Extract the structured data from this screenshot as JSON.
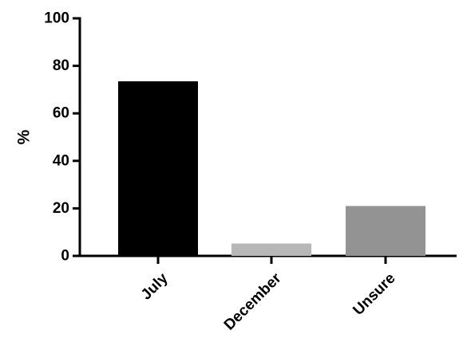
{
  "chart_data": {
    "type": "bar",
    "title": "",
    "xlabel": "",
    "ylabel": "%",
    "categories": [
      "July",
      "December",
      "Unsure"
    ],
    "values": [
      73.5,
      5.2,
      21.0
    ],
    "colors": [
      "#000000",
      "#b7b7b7",
      "#939393"
    ],
    "ylim": [
      0,
      100
    ],
    "yticks": [
      0,
      20,
      40,
      60,
      80,
      100
    ],
    "ytick_labels": [
      "0",
      "20",
      "40",
      "60",
      "80",
      "100"
    ],
    "grid": false,
    "legend": "none"
  }
}
